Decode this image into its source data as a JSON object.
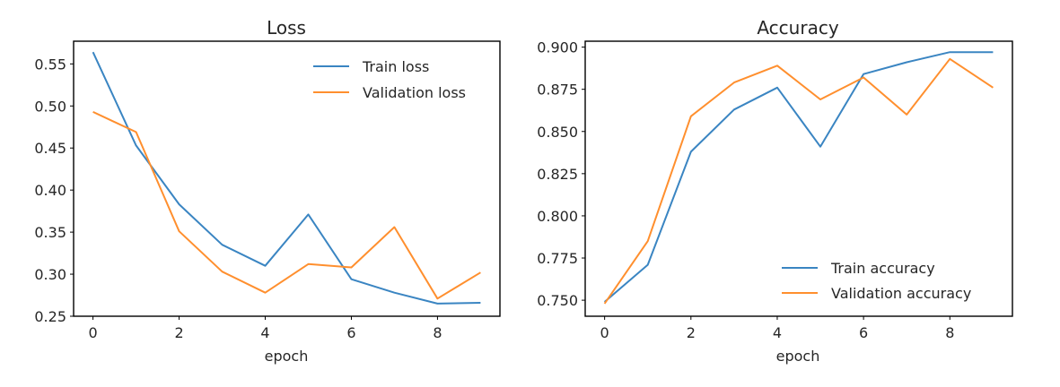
{
  "chart_data": [
    {
      "type": "line",
      "title": "Loss",
      "xlabel": "epoch",
      "ylabel": "",
      "x": [
        0,
        1,
        2,
        3,
        4,
        5,
        6,
        7,
        8,
        9
      ],
      "xlim": [
        -0.45,
        9.45
      ],
      "ylim": [
        0.25,
        0.577
      ],
      "xticks": [
        0,
        2,
        4,
        6,
        8
      ],
      "xtick_labels": [
        "0",
        "2",
        "4",
        "6",
        "8"
      ],
      "yticks": [
        0.25,
        0.3,
        0.35,
        0.4,
        0.45,
        0.5,
        0.55
      ],
      "ytick_labels": [
        "0.25",
        "0.30",
        "0.35",
        "0.40",
        "0.45",
        "0.50",
        "0.55"
      ],
      "legend_position": "top-right",
      "grid": false,
      "series": [
        {
          "name": "Train loss",
          "color": "#3a85c2",
          "values": [
            0.564,
            0.453,
            0.383,
            0.335,
            0.31,
            0.371,
            0.294,
            0.278,
            0.265,
            0.266
          ]
        },
        {
          "name": "Validation loss",
          "color": "#ff8f2e",
          "values": [
            0.493,
            0.469,
            0.351,
            0.303,
            0.278,
            0.312,
            0.308,
            0.356,
            0.271,
            0.302
          ]
        }
      ]
    },
    {
      "type": "line",
      "title": "Accuracy",
      "xlabel": "epoch",
      "ylabel": "",
      "x": [
        0,
        1,
        2,
        3,
        4,
        5,
        6,
        7,
        8,
        9
      ],
      "xlim": [
        -0.45,
        9.45
      ],
      "ylim": [
        0.7405,
        0.9035
      ],
      "xticks": [
        0,
        2,
        4,
        6,
        8
      ],
      "xtick_labels": [
        "0",
        "2",
        "4",
        "6",
        "8"
      ],
      "yticks": [
        0.75,
        0.775,
        0.8,
        0.825,
        0.85,
        0.875,
        0.9
      ],
      "ytick_labels": [
        "0.750",
        "0.775",
        "0.800",
        "0.825",
        "0.850",
        "0.875",
        "0.900"
      ],
      "legend_position": "bottom-right",
      "grid": false,
      "series": [
        {
          "name": "Train accuracy",
          "color": "#3a85c2",
          "values": [
            0.749,
            0.771,
            0.838,
            0.863,
            0.876,
            0.841,
            0.884,
            0.891,
            0.897,
            0.897
          ]
        },
        {
          "name": "Validation accuracy",
          "color": "#ff8f2e",
          "values": [
            0.748,
            0.785,
            0.859,
            0.879,
            0.889,
            0.869,
            0.882,
            0.86,
            0.893,
            0.876
          ]
        }
      ]
    }
  ]
}
